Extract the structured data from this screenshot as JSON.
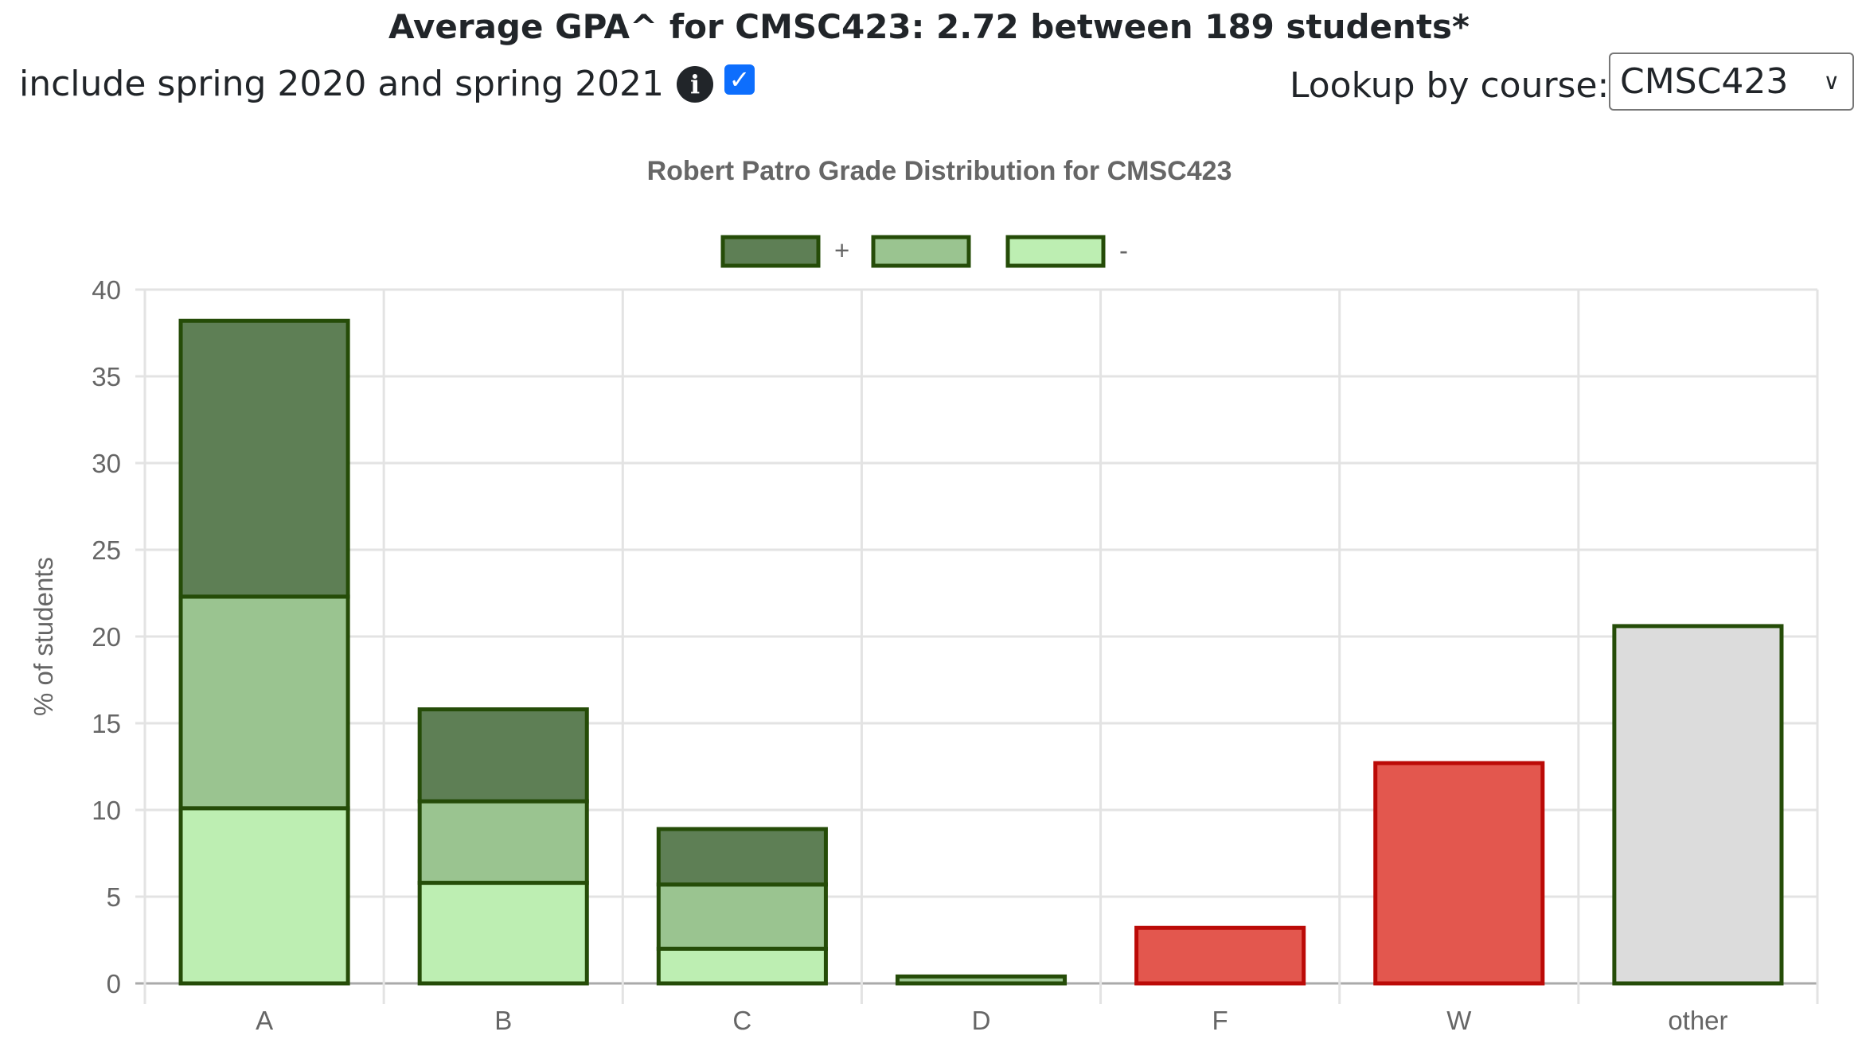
{
  "header": {
    "title": "Average GPA^ for CMSC423: 2.72 between 189 students*",
    "include_label": "include spring 2020 and spring 2021",
    "info_icon": "info-circle-icon",
    "include_checked": true,
    "lookup_label": "Lookup by course:",
    "course_selected": "CMSC423"
  },
  "chart_data": {
    "type": "bar",
    "stacked": true,
    "title": "Robert Patro Grade Distribution for CMSC423",
    "xlabel": "",
    "ylabel": "% of students",
    "ylim": [
      0,
      40
    ],
    "yticks": [
      0,
      5,
      10,
      15,
      20,
      25,
      30,
      35,
      40
    ],
    "grid": true,
    "legend_position": "top",
    "categories": [
      "A",
      "B",
      "C",
      "D",
      "F",
      "W",
      "other"
    ],
    "series": [
      {
        "name": "-",
        "color": "#bdeeb2",
        "border": "#254c08",
        "values": [
          10.1,
          5.8,
          2.0,
          0,
          0,
          0,
          0
        ]
      },
      {
        "name": "",
        "color": "#9ac490",
        "border": "#254c08",
        "values": [
          12.2,
          4.7,
          3.7,
          0.4,
          0,
          0,
          0
        ]
      },
      {
        "name": "+",
        "color": "#5e7f55",
        "border": "#254c08",
        "values": [
          15.9,
          5.3,
          3.2,
          0,
          0,
          0,
          0
        ]
      }
    ],
    "single_bars": [
      {
        "category": "F",
        "value": 3.2,
        "color": "#e3574e",
        "border": "#bb0a07"
      },
      {
        "category": "W",
        "value": 12.7,
        "color": "#e3574e",
        "border": "#bb0a07"
      },
      {
        "category": "other",
        "value": 20.6,
        "color": "#dcdcdc",
        "border": "#254c08"
      }
    ]
  }
}
